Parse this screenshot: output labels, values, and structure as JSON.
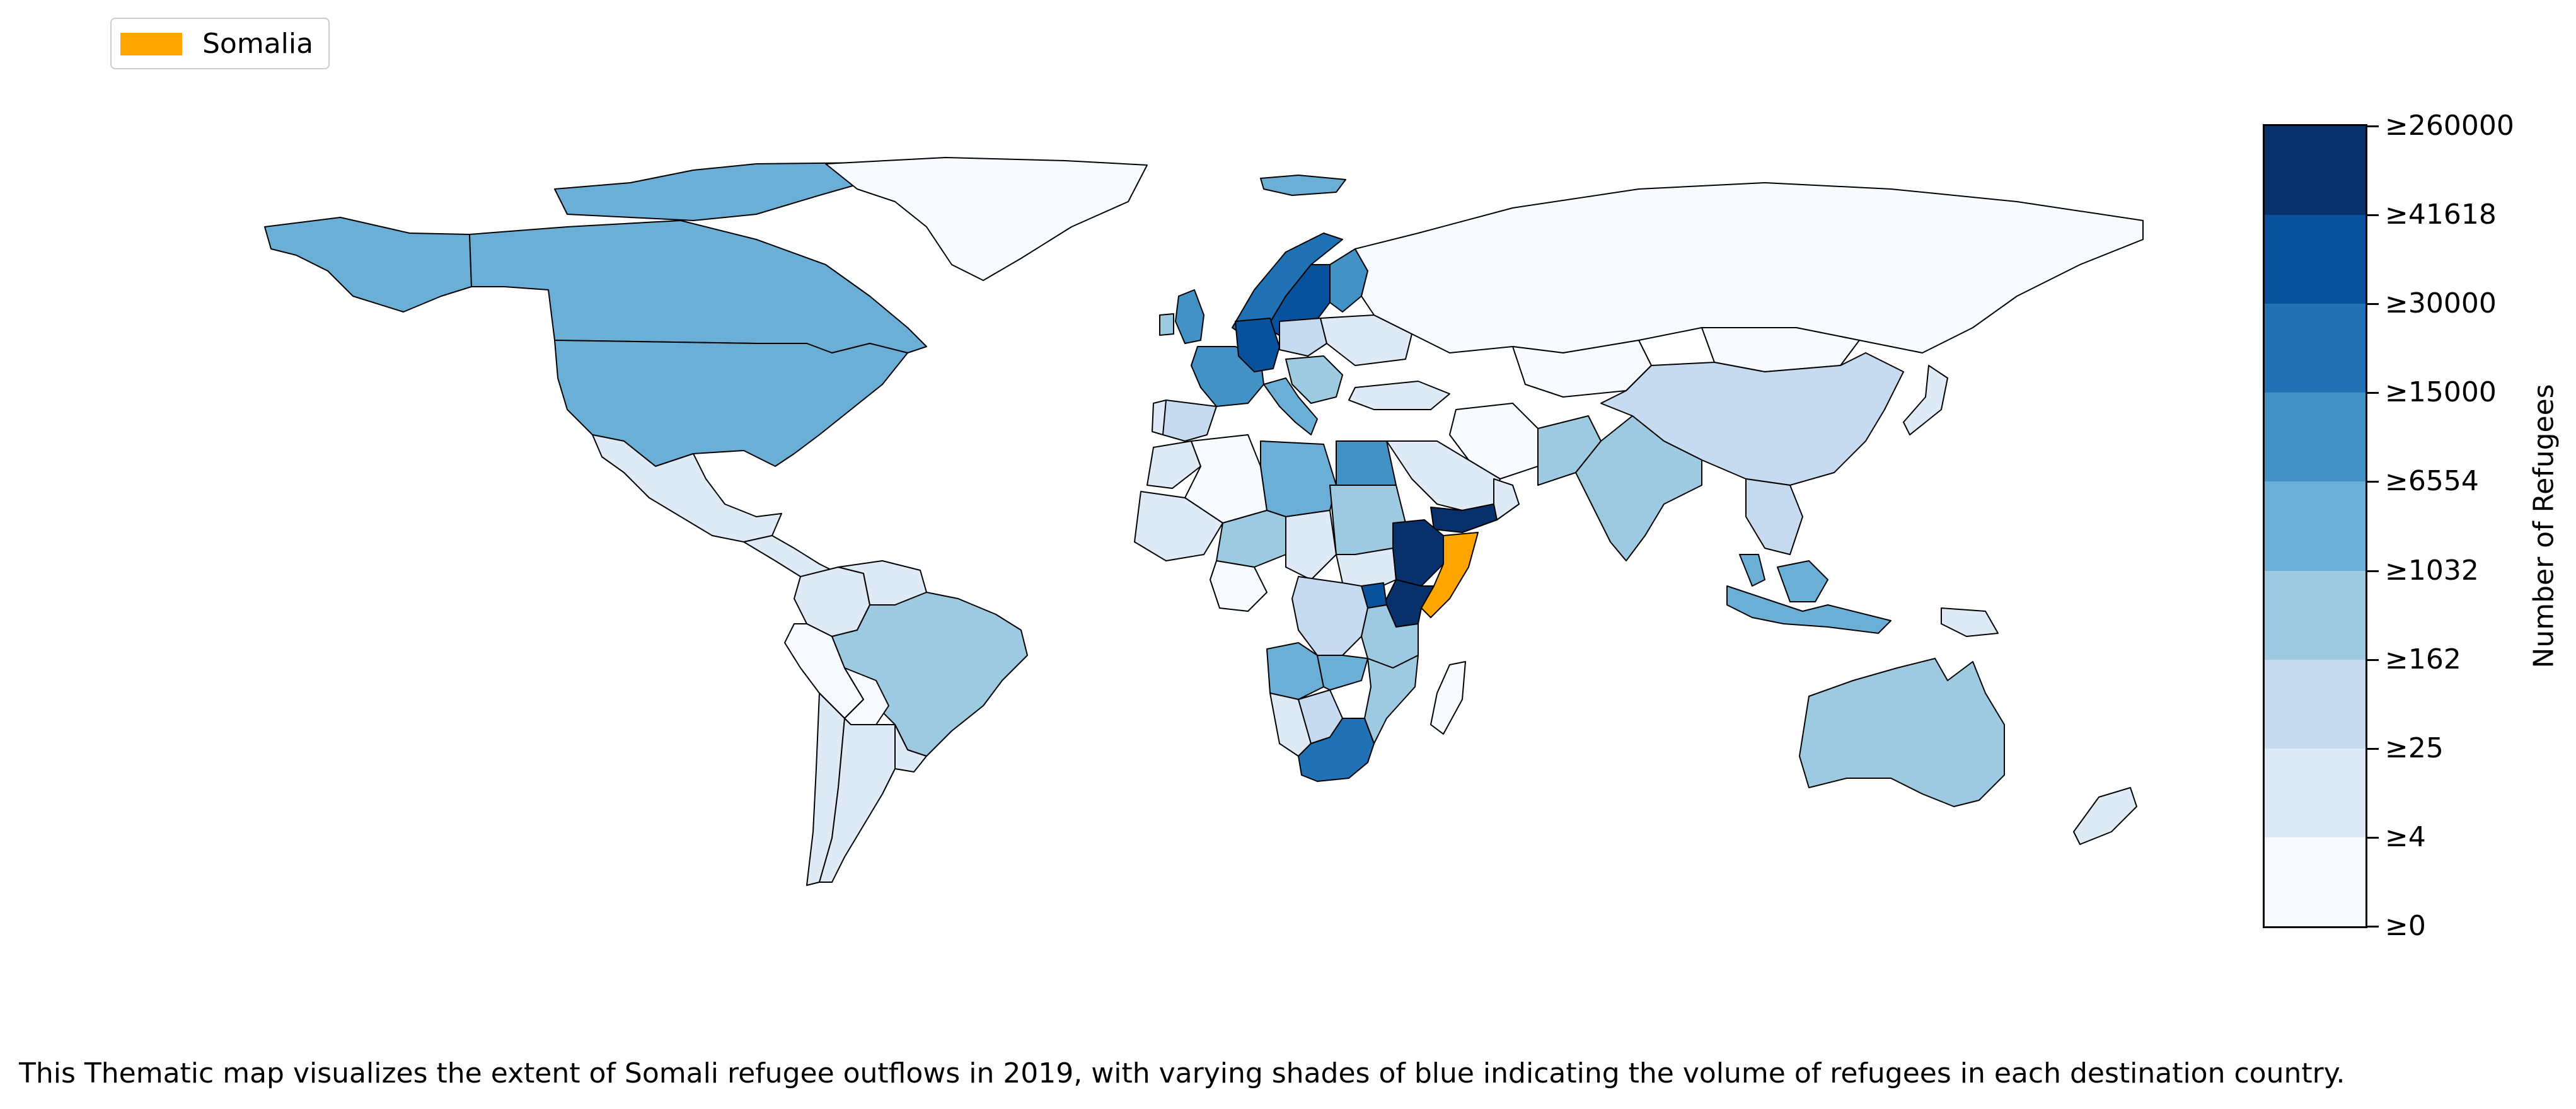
{
  "legend": {
    "label": "Somalia",
    "highlight_color": "#ffa500"
  },
  "colorbar": {
    "title": "Number of Refugees",
    "colors": [
      "#f7fbff",
      "#deebf7",
      "#c6dbef",
      "#9ecae1",
      "#6baed6",
      "#4292c6",
      "#2171b5",
      "#08519c",
      "#08306b"
    ],
    "tick_labels": [
      "≥0",
      "≥4",
      "≥25",
      "≥162",
      "≥1032",
      "≥6554",
      "≥15000",
      "≥30000",
      "≥41618",
      "≥260000"
    ]
  },
  "caption": "This Thematic map visualizes the extent of Somali refugee outflows in 2019, with varying shades of blue indicating the volume of refugees in each destination country.",
  "map": {
    "origin_country": "Somalia",
    "regions": [
      {
        "name": "Canada",
        "level": 4
      },
      {
        "name": "United States",
        "level": 4
      },
      {
        "name": "Alaska",
        "level": 4
      },
      {
        "name": "Greenland",
        "level": 0
      },
      {
        "name": "Mexico",
        "level": 1
      },
      {
        "name": "Central America",
        "level": 1
      },
      {
        "name": "Colombia",
        "level": 1
      },
      {
        "name": "Venezuela",
        "level": 1
      },
      {
        "name": "Brazil",
        "level": 3
      },
      {
        "name": "Peru",
        "level": 0
      },
      {
        "name": "Bolivia",
        "level": 0
      },
      {
        "name": "Argentina",
        "level": 1
      },
      {
        "name": "Chile",
        "level": 1
      },
      {
        "name": "Uruguay",
        "level": 1
      },
      {
        "name": "Iceland",
        "level": 4
      },
      {
        "name": "United Kingdom",
        "level": 5
      },
      {
        "name": "Ireland",
        "level": 3
      },
      {
        "name": "Norway",
        "level": 6
      },
      {
        "name": "Sweden",
        "level": 7
      },
      {
        "name": "Finland",
        "level": 5
      },
      {
        "name": "Germany",
        "level": 7
      },
      {
        "name": "France",
        "level": 5
      },
      {
        "name": "Spain",
        "level": 2
      },
      {
        "name": "Portugal",
        "level": 1
      },
      {
        "name": "Italy",
        "level": 4
      },
      {
        "name": "Poland",
        "level": 2
      },
      {
        "name": "Ukraine",
        "level": 1
      },
      {
        "name": "Balkans",
        "level": 3
      },
      {
        "name": "Russia",
        "level": 0
      },
      {
        "name": "Kazakhstan",
        "level": 0
      },
      {
        "name": "Turkey",
        "level": 1
      },
      {
        "name": "Iran",
        "level": 0
      },
      {
        "name": "Saudi Arabia",
        "level": 1
      },
      {
        "name": "Yemen",
        "level": 8
      },
      {
        "name": "Oman",
        "level": 1
      },
      {
        "name": "Egypt",
        "level": 5
      },
      {
        "name": "Libya",
        "level": 4
      },
      {
        "name": "Algeria",
        "level": 0
      },
      {
        "name": "Morocco",
        "level": 1
      },
      {
        "name": "Mali",
        "level": 1
      },
      {
        "name": "Niger",
        "level": 3
      },
      {
        "name": "Chad",
        "level": 1
      },
      {
        "name": "Sudan",
        "level": 3
      },
      {
        "name": "South Sudan",
        "level": 1
      },
      {
        "name": "Ethiopia",
        "level": 8
      },
      {
        "name": "Kenya",
        "level": 8
      },
      {
        "name": "Uganda",
        "level": 7
      },
      {
        "name": "Tanzania",
        "level": 3
      },
      {
        "name": "Nigeria",
        "level": 0
      },
      {
        "name": "Congo (DRC)",
        "level": 2
      },
      {
        "name": "Angola",
        "level": 4
      },
      {
        "name": "Zambia",
        "level": 4
      },
      {
        "name": "Mozambique",
        "level": 3
      },
      {
        "name": "Namibia",
        "level": 1
      },
      {
        "name": "Botswana",
        "level": 2
      },
      {
        "name": "South Africa",
        "level": 6
      },
      {
        "name": "Madagascar",
        "level": 0
      },
      {
        "name": "India",
        "level": 3
      },
      {
        "name": "Pakistan",
        "level": 3
      },
      {
        "name": "China",
        "level": 2
      },
      {
        "name": "Mongolia",
        "level": 0
      },
      {
        "name": "Japan",
        "level": 1
      },
      {
        "name": "Southeast Asia",
        "level": 2
      },
      {
        "name": "Malaysia",
        "level": 4
      },
      {
        "name": "Indonesia",
        "level": 4
      },
      {
        "name": "Papua New Guinea",
        "level": 1
      },
      {
        "name": "Australia",
        "level": 3
      },
      {
        "name": "New Zealand",
        "level": 1
      },
      {
        "name": "Somalia",
        "level": "origin"
      }
    ]
  }
}
